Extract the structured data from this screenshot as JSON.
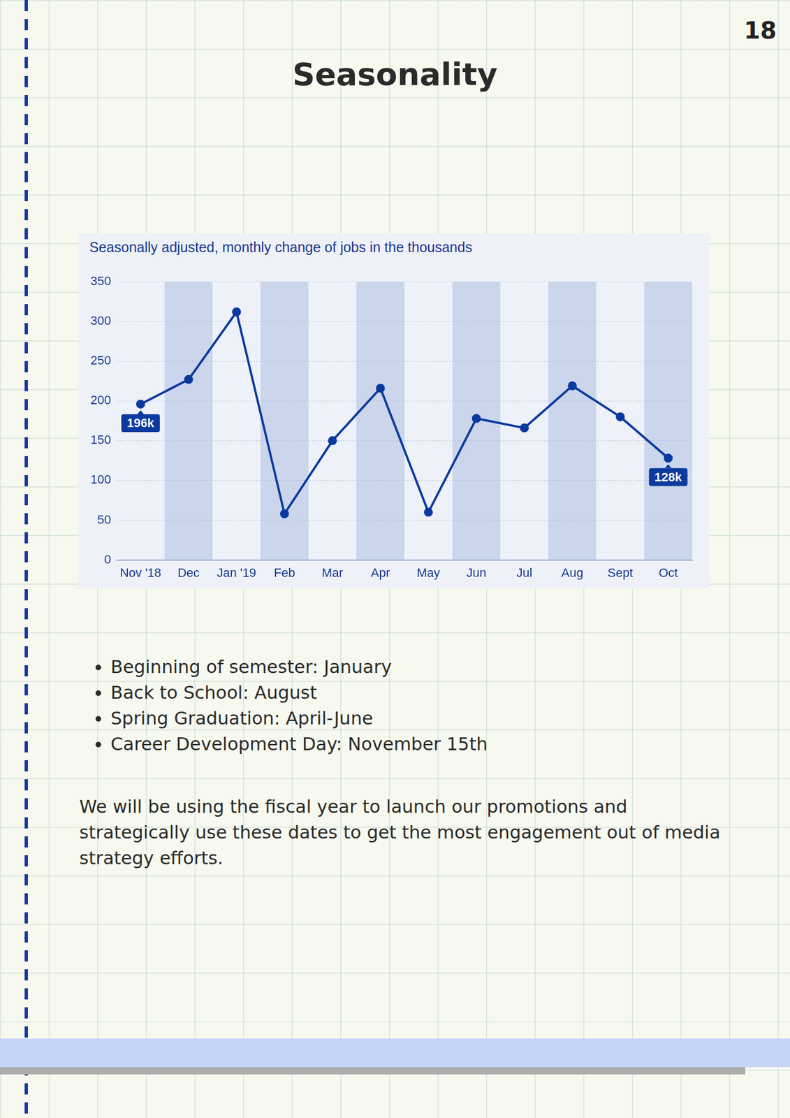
{
  "page_number": "18",
  "title": "Seasonality",
  "chart_data": {
    "type": "line",
    "title": "Seasonally adjusted, monthly change of jobs in the thousands",
    "categories": [
      "Nov '18",
      "Dec",
      "Jan '19",
      "Feb",
      "Mar",
      "Apr",
      "May",
      "Jun",
      "Jul",
      "Aug",
      "Sept",
      "Oct"
    ],
    "values": [
      196,
      227,
      312,
      58,
      150,
      216,
      60,
      178,
      166,
      219,
      180,
      128
    ],
    "value_labels": [
      "196k",
      null,
      null,
      null,
      null,
      null,
      null,
      null,
      null,
      null,
      null,
      "128k"
    ],
    "color": "#0b3a9e",
    "marker": "circle",
    "ylim": [
      0,
      350
    ],
    "yticks": [
      0,
      50,
      100,
      150,
      200,
      250,
      300,
      350
    ],
    "grid": true
  },
  "bullets": [
    "Beginning of semester: January",
    "Back to School: August",
    "Spring Graduation: April-June",
    "Career Development Day: November 15th"
  ],
  "paragraph": "We will be using the fiscal year to launch our promotions and strategically use these dates to get the most engagement out of media strategy efforts."
}
